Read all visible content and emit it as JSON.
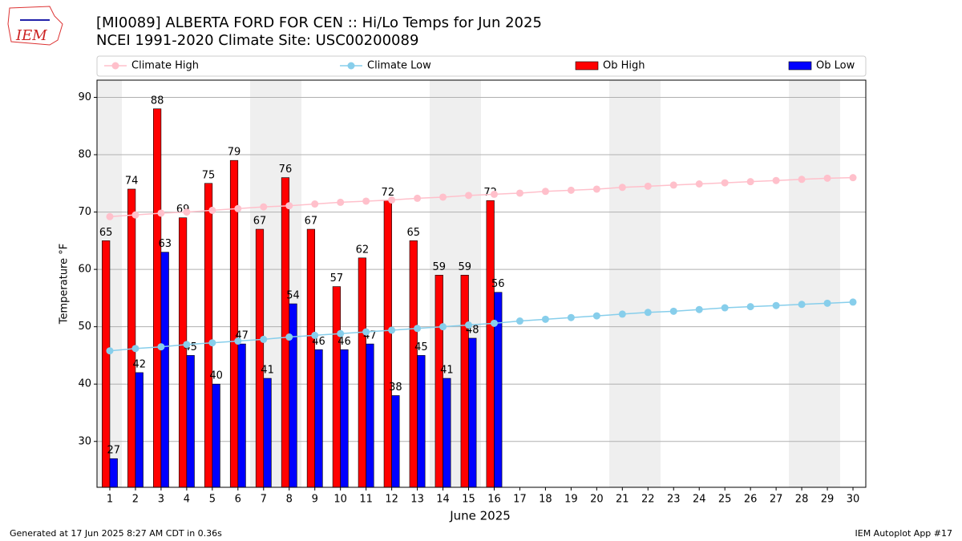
{
  "chart_data": {
    "type": "bar",
    "title": "[MI0089] ALBERTA FORD FOR CEN :: Hi/Lo Temps for Jun 2025",
    "subtitle": "NCEI 1991-2020 Climate Site: USC00200089",
    "xlabel": "June 2025",
    "ylabel": "Temperature °F",
    "footer_left": "Generated at 17 Jun 2025 8:27 AM CDT in 0.36s",
    "footer_right": "IEM Autoplot App #17",
    "logo": "IEM",
    "x": [
      1,
      2,
      3,
      4,
      5,
      6,
      7,
      8,
      9,
      10,
      11,
      12,
      13,
      14,
      15,
      16,
      17,
      18,
      19,
      20,
      21,
      22,
      23,
      24,
      25,
      26,
      27,
      28,
      29,
      30
    ],
    "xlim": [
      0.5,
      30.5
    ],
    "ylim": [
      22,
      93
    ],
    "yticks": [
      30,
      40,
      50,
      60,
      70,
      80,
      90
    ],
    "grid": true,
    "legend": "top",
    "series": [
      {
        "name": "Climate High",
        "type": "line",
        "color": "#ffc0cb",
        "values": [
          69.2,
          69.5,
          69.8,
          70.0,
          70.3,
          70.6,
          70.9,
          71.1,
          71.4,
          71.7,
          71.9,
          72.1,
          72.4,
          72.6,
          72.9,
          73.1,
          73.3,
          73.6,
          73.8,
          74.0,
          74.3,
          74.5,
          74.7,
          74.9,
          75.1,
          75.3,
          75.5,
          75.7,
          75.9,
          76.0
        ]
      },
      {
        "name": "Climate Low",
        "type": "line",
        "color": "#87ceeb",
        "values": [
          45.8,
          46.2,
          46.5,
          46.9,
          47.2,
          47.5,
          47.8,
          48.2,
          48.5,
          48.8,
          49.1,
          49.4,
          49.7,
          50.0,
          50.3,
          50.6,
          51.0,
          51.3,
          51.6,
          51.9,
          52.2,
          52.5,
          52.7,
          53.0,
          53.3,
          53.5,
          53.7,
          53.9,
          54.1,
          54.3
        ]
      },
      {
        "name": "Ob High",
        "type": "bar",
        "color": "#ff0000",
        "values": [
          65,
          74,
          88,
          69,
          75,
          79,
          67,
          76,
          67,
          57,
          62,
          72,
          65,
          59,
          59,
          72,
          null,
          null,
          null,
          null,
          null,
          null,
          null,
          null,
          null,
          null,
          null,
          null,
          null,
          null
        ]
      },
      {
        "name": "Ob Low",
        "type": "bar",
        "color": "#0000ff",
        "values": [
          27,
          42,
          63,
          45,
          40,
          47,
          41,
          54,
          46,
          46,
          47,
          38,
          45,
          41,
          48,
          56,
          null,
          null,
          null,
          null,
          null,
          null,
          null,
          null,
          null,
          null,
          null,
          null,
          null,
          null
        ]
      }
    ]
  }
}
